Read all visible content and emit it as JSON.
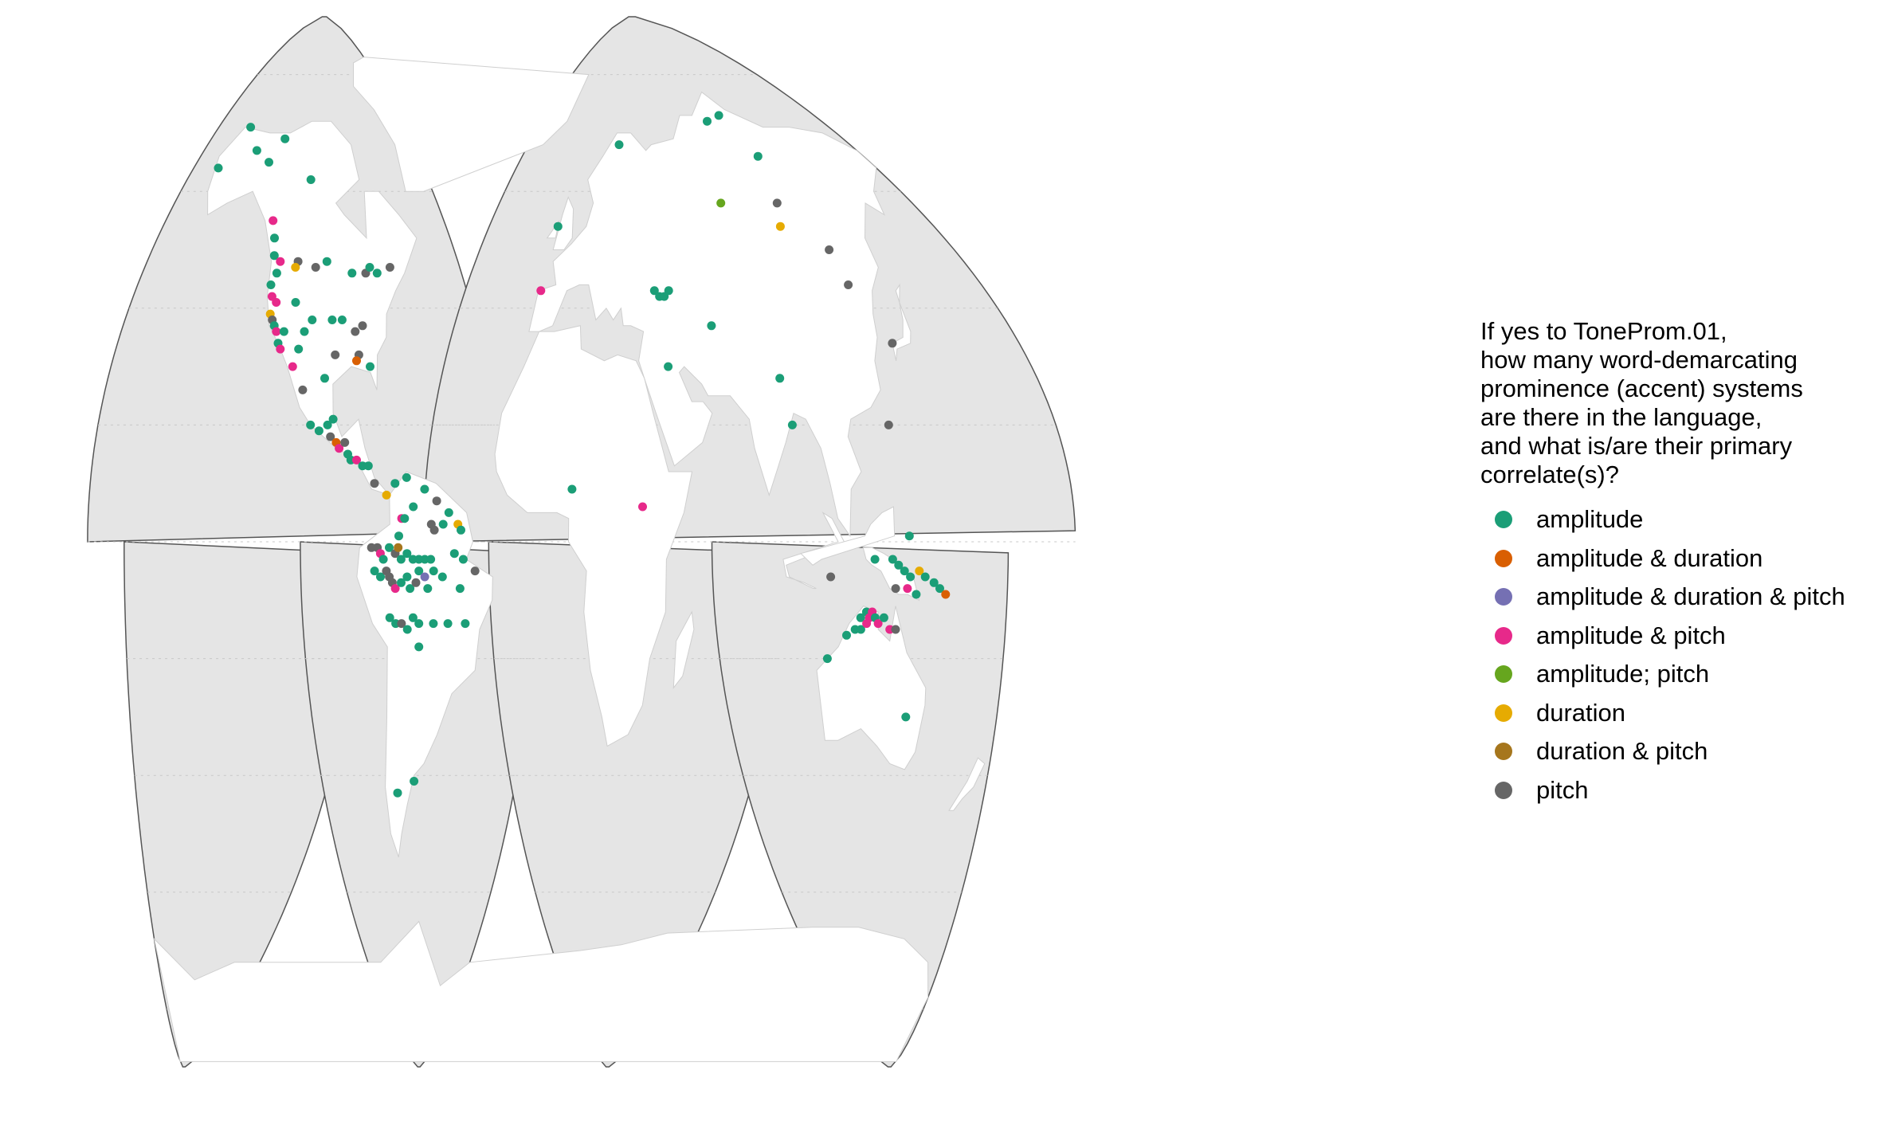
{
  "map": {
    "projection": "interrupted goode homolosine",
    "land_color": "#ffffff",
    "ocean_color": "#e5e5e5",
    "outline_color": "#555555"
  },
  "legend": {
    "title": "If yes to ToneProm.01,\nhow many word-demarcating\nprominence (accent) systems\nare there in the language,\nand what is/are their primary\ncorrelate(s)?",
    "items": [
      {
        "label": "amplitude",
        "color": "#1b9e77"
      },
      {
        "label": "amplitude & duration",
        "color": "#d95f02"
      },
      {
        "label": "amplitude & duration & pitch",
        "color": "#7570b3"
      },
      {
        "label": "amplitude & pitch",
        "color": "#e7298a"
      },
      {
        "label": "amplitude; pitch",
        "color": "#66a61e"
      },
      {
        "label": "duration",
        "color": "#e6ab02"
      },
      {
        "label": "duration & pitch",
        "color": "#a6761d"
      },
      {
        "label": "pitch",
        "color": "#666666"
      }
    ]
  },
  "points": [
    {
      "lon": -165,
      "lat": 64,
      "cat": 0
    },
    {
      "lon": -156,
      "lat": 71,
      "cat": 0
    },
    {
      "lon": -145,
      "lat": 67,
      "cat": 0
    },
    {
      "lon": -135,
      "lat": 65,
      "cat": 0
    },
    {
      "lon": -128,
      "lat": 69,
      "cat": 0
    },
    {
      "lon": -108,
      "lat": 62,
      "cat": 0
    },
    {
      "lon": -126,
      "lat": 55,
      "cat": 3
    },
    {
      "lon": -124,
      "lat": 52,
      "cat": 0
    },
    {
      "lon": -123,
      "lat": 49,
      "cat": 0
    },
    {
      "lon": -120,
      "lat": 48,
      "cat": 3
    },
    {
      "lon": -121,
      "lat": 46,
      "cat": 0
    },
    {
      "lon": -123,
      "lat": 44,
      "cat": 0
    },
    {
      "lon": -122,
      "lat": 42,
      "cat": 3
    },
    {
      "lon": -120,
      "lat": 41,
      "cat": 3
    },
    {
      "lon": -122,
      "lat": 39,
      "cat": 5
    },
    {
      "lon": -121,
      "lat": 38,
      "cat": 7
    },
    {
      "lon": -120,
      "lat": 37,
      "cat": 0
    },
    {
      "lon": -119,
      "lat": 36,
      "cat": 3
    },
    {
      "lon": -118,
      "lat": 34,
      "cat": 0
    },
    {
      "lon": -117,
      "lat": 33,
      "cat": 3
    },
    {
      "lon": -116,
      "lat": 36,
      "cat": 0
    },
    {
      "lon": -112,
      "lat": 48,
      "cat": 7
    },
    {
      "lon": -113,
      "lat": 47,
      "cat": 5
    },
    {
      "lon": -104,
      "lat": 47,
      "cat": 7
    },
    {
      "lon": -99,
      "lat": 48,
      "cat": 0
    },
    {
      "lon": -88,
      "lat": 46,
      "cat": 0
    },
    {
      "lon": -82,
      "lat": 46,
      "cat": 7
    },
    {
      "lon": -80,
      "lat": 47,
      "cat": 0
    },
    {
      "lon": -77,
      "lat": 46,
      "cat": 0
    },
    {
      "lon": -71,
      "lat": 47,
      "cat": 7
    },
    {
      "lon": -112,
      "lat": 41,
      "cat": 0
    },
    {
      "lon": -108,
      "lat": 36,
      "cat": 0
    },
    {
      "lon": -105,
      "lat": 38,
      "cat": 0
    },
    {
      "lon": -110,
      "lat": 33,
      "cat": 0
    },
    {
      "lon": -112,
      "lat": 30,
      "cat": 3
    },
    {
      "lon": -97,
      "lat": 38,
      "cat": 0
    },
    {
      "lon": -93,
      "lat": 38,
      "cat": 0
    },
    {
      "lon": -88,
      "lat": 36,
      "cat": 7
    },
    {
      "lon": -85,
      "lat": 37,
      "cat": 7
    },
    {
      "lon": -87,
      "lat": 32,
      "cat": 7
    },
    {
      "lon": -88,
      "lat": 31,
      "cat": 1
    },
    {
      "lon": -83,
      "lat": 30,
      "cat": 0
    },
    {
      "lon": -96,
      "lat": 32,
      "cat": 7
    },
    {
      "lon": -108,
      "lat": 26,
      "cat": 7
    },
    {
      "lon": -100,
      "lat": 28,
      "cat": 0
    },
    {
      "lon": -105,
      "lat": 20,
      "cat": 0
    },
    {
      "lon": -102,
      "lat": 19,
      "cat": 0
    },
    {
      "lon": -99,
      "lat": 20,
      "cat": 0
    },
    {
      "lon": -98,
      "lat": 18,
      "cat": 7
    },
    {
      "lon": -96,
      "lat": 17,
      "cat": 1
    },
    {
      "lon": -97,
      "lat": 21,
      "cat": 0
    },
    {
      "lon": -95,
      "lat": 16,
      "cat": 3
    },
    {
      "lon": -93,
      "lat": 17,
      "cat": 7
    },
    {
      "lon": -92,
      "lat": 15,
      "cat": 0
    },
    {
      "lon": -91,
      "lat": 14,
      "cat": 0
    },
    {
      "lon": -89,
      "lat": 14,
      "cat": 3
    },
    {
      "lon": -87,
      "lat": 13,
      "cat": 0
    },
    {
      "lon": -85,
      "lat": 13,
      "cat": 0
    },
    {
      "lon": -83,
      "lat": 10,
      "cat": 7
    },
    {
      "lon": -79,
      "lat": 8,
      "cat": 5
    },
    {
      "lon": -76,
      "lat": 10,
      "cat": 0
    },
    {
      "lon": -72,
      "lat": 11,
      "cat": 0
    },
    {
      "lon": -66,
      "lat": 9,
      "cat": 0
    },
    {
      "lon": -74,
      "lat": 4,
      "cat": 3
    },
    {
      "lon": -73,
      "lat": 4,
      "cat": 0
    },
    {
      "lon": -70,
      "lat": 6,
      "cat": 0
    },
    {
      "lon": -62,
      "lat": 7,
      "cat": 7
    },
    {
      "lon": -58,
      "lat": 5,
      "cat": 0
    },
    {
      "lon": -55,
      "lat": 3,
      "cat": 5
    },
    {
      "lon": -64,
      "lat": 3,
      "cat": 7
    },
    {
      "lon": -63,
      "lat": 2,
      "cat": 7
    },
    {
      "lon": -60,
      "lat": 3,
      "cat": 0
    },
    {
      "lon": -54,
      "lat": 2,
      "cat": 0
    },
    {
      "lon": -76,
      "lat": -1,
      "cat": 7
    },
    {
      "lon": -75,
      "lat": 1,
      "cat": 0
    },
    {
      "lon": -74,
      "lat": -1,
      "cat": 7
    },
    {
      "lon": -73,
      "lat": -2,
      "cat": 3
    },
    {
      "lon": -72,
      "lat": -3,
      "cat": 0
    },
    {
      "lon": -70,
      "lat": -1,
      "cat": 0
    },
    {
      "lon": -68,
      "lat": -2,
      "cat": 7
    },
    {
      "lon": -67,
      "lat": -1,
      "cat": 6
    },
    {
      "lon": -66,
      "lat": -3,
      "cat": 0
    },
    {
      "lon": -64,
      "lat": -2,
      "cat": 0
    },
    {
      "lon": -62,
      "lat": -3,
      "cat": 0
    },
    {
      "lon": -60,
      "lat": -3,
      "cat": 0
    },
    {
      "lon": -58,
      "lat": -3,
      "cat": 0
    },
    {
      "lon": -56,
      "lat": -3,
      "cat": 0
    },
    {
      "lon": -75,
      "lat": -5,
      "cat": 0
    },
    {
      "lon": -73,
      "lat": -6,
      "cat": 0
    },
    {
      "lon": -71,
      "lat": -5,
      "cat": 7
    },
    {
      "lon": -70,
      "lat": -6,
      "cat": 7
    },
    {
      "lon": -69,
      "lat": -7,
      "cat": 7
    },
    {
      "lon": -68,
      "lat": -8,
      "cat": 3
    },
    {
      "lon": -66,
      "lat": -7,
      "cat": 0
    },
    {
      "lon": -64,
      "lat": -6,
      "cat": 0
    },
    {
      "lon": -63,
      "lat": -8,
      "cat": 0
    },
    {
      "lon": -61,
      "lat": -7,
      "cat": 7
    },
    {
      "lon": -60,
      "lat": -5,
      "cat": 0
    },
    {
      "lon": -58,
      "lat": -6,
      "cat": 2
    },
    {
      "lon": -57,
      "lat": -8,
      "cat": 0
    },
    {
      "lon": -55,
      "lat": -5,
      "cat": 0
    },
    {
      "lon": -52,
      "lat": -6,
      "cat": 0
    },
    {
      "lon": -48,
      "lat": -2,
      "cat": 0
    },
    {
      "lon": -45,
      "lat": -3,
      "cat": 0
    },
    {
      "lon": -41,
      "lat": -5,
      "cat": 7
    },
    {
      "lon": -46,
      "lat": -8,
      "cat": 0
    },
    {
      "lon": -70,
      "lat": -13,
      "cat": 0
    },
    {
      "lon": -68,
      "lat": -14,
      "cat": 0
    },
    {
      "lon": -66,
      "lat": -14,
      "cat": 7
    },
    {
      "lon": -64,
      "lat": -15,
      "cat": 0
    },
    {
      "lon": -62,
      "lat": -13,
      "cat": 0
    },
    {
      "lon": -60,
      "lat": -14,
      "cat": 0
    },
    {
      "lon": -55,
      "lat": -14,
      "cat": 0
    },
    {
      "lon": -50,
      "lat": -14,
      "cat": 0
    },
    {
      "lon": -60,
      "lat": -18,
      "cat": 0
    },
    {
      "lon": -44,
      "lat": -14,
      "cat": 0
    },
    {
      "lon": -62,
      "lat": -41,
      "cat": 0
    },
    {
      "lon": -69,
      "lat": -43,
      "cat": 0
    },
    {
      "lon": -6,
      "lat": 54,
      "cat": 0
    },
    {
      "lon": -8,
      "lat": 43,
      "cat": 3
    },
    {
      "lon": 22,
      "lat": 68,
      "cat": 0
    },
    {
      "lon": 40,
      "lat": 43,
      "cat": 0
    },
    {
      "lon": 42,
      "lat": 42,
      "cat": 0
    },
    {
      "lon": 44,
      "lat": 42,
      "cat": 0
    },
    {
      "lon": 46,
      "lat": 43,
      "cat": 0
    },
    {
      "lon": 44,
      "lat": 30,
      "cat": 0
    },
    {
      "lon": 62,
      "lat": 37,
      "cat": 0
    },
    {
      "lon": 10,
      "lat": 9,
      "cat": 0
    },
    {
      "lon": 34,
      "lat": 6,
      "cat": 3
    },
    {
      "lon": 78,
      "lat": 58,
      "cat": 4
    },
    {
      "lon": 90,
      "lat": 72,
      "cat": 0
    },
    {
      "lon": 102,
      "lat": 73,
      "cat": 0
    },
    {
      "lon": 112,
      "lat": 66,
      "cat": 0
    },
    {
      "lon": 108,
      "lat": 58,
      "cat": 7
    },
    {
      "lon": 104,
      "lat": 54,
      "cat": 5
    },
    {
      "lon": 122,
      "lat": 50,
      "cat": 7
    },
    {
      "lon": 123,
      "lat": 44,
      "cat": 7
    },
    {
      "lon": 131,
      "lat": 34,
      "cat": 7
    },
    {
      "lon": 85,
      "lat": 28,
      "cat": 0
    },
    {
      "lon": 87,
      "lat": 20,
      "cat": 0
    },
    {
      "lon": 121,
      "lat": 20,
      "cat": 7
    },
    {
      "lon": 124,
      "lat": 1,
      "cat": 0
    },
    {
      "lon": 120,
      "lat": -6,
      "cat": 7
    },
    {
      "lon": 135,
      "lat": -3,
      "cat": 0
    },
    {
      "lon": 141,
      "lat": -3,
      "cat": 0
    },
    {
      "lon": 143,
      "lat": -4,
      "cat": 0
    },
    {
      "lon": 145,
      "lat": -5,
      "cat": 0
    },
    {
      "lon": 147,
      "lat": -6,
      "cat": 0
    },
    {
      "lon": 150,
      "lat": -5,
      "cat": 5
    },
    {
      "lon": 152,
      "lat": -6,
      "cat": 0
    },
    {
      "lon": 155,
      "lat": -7,
      "cat": 0
    },
    {
      "lon": 157,
      "lat": -8,
      "cat": 0
    },
    {
      "lon": 159,
      "lat": -9,
      "cat": 1
    },
    {
      "lon": 146,
      "lat": -8,
      "cat": 3
    },
    {
      "lon": 142,
      "lat": -8,
      "cat": 7
    },
    {
      "lon": 149,
      "lat": -9,
      "cat": 0
    },
    {
      "lon": 125,
      "lat": -16,
      "cat": 0
    },
    {
      "lon": 128,
      "lat": -15,
      "cat": 0
    },
    {
      "lon": 130,
      "lat": -13,
      "cat": 0
    },
    {
      "lon": 132,
      "lat": -12,
      "cat": 0
    },
    {
      "lon": 133,
      "lat": -13,
      "cat": 3
    },
    {
      "lon": 134,
      "lat": -12,
      "cat": 3
    },
    {
      "lon": 135,
      "lat": -13,
      "cat": 0
    },
    {
      "lon": 136,
      "lat": -14,
      "cat": 3
    },
    {
      "lon": 138,
      "lat": -13,
      "cat": 0
    },
    {
      "lon": 130,
      "lat": -15,
      "cat": 0
    },
    {
      "lon": 132,
      "lat": -14,
      "cat": 3
    },
    {
      "lon": 140,
      "lat": -15,
      "cat": 3
    },
    {
      "lon": 142,
      "lat": -15,
      "cat": 7
    },
    {
      "lon": 118,
      "lat": -20,
      "cat": 0
    },
    {
      "lon": 146,
      "lat": -30,
      "cat": 0
    }
  ]
}
